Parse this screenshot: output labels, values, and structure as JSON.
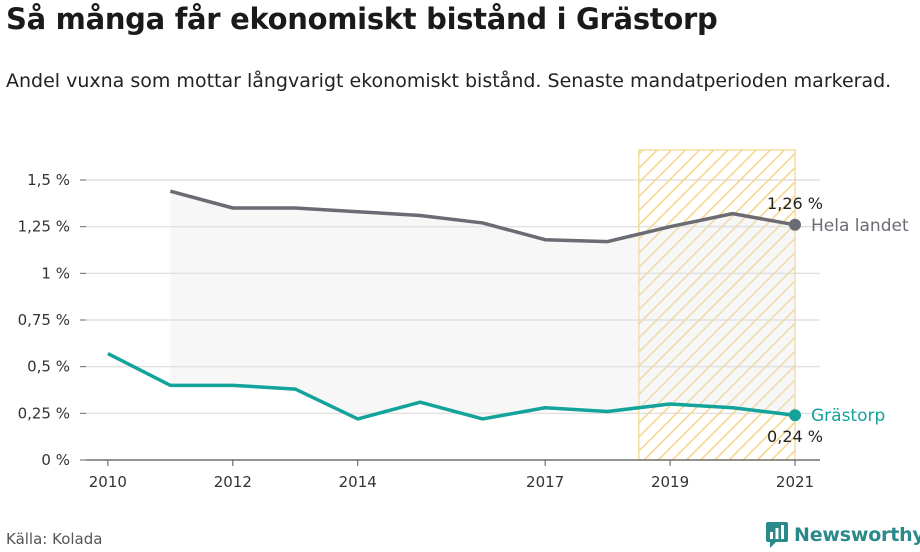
{
  "header": {
    "title": "Så många får ekonomiskt bistånd i Grästorp",
    "subtitle": "Andel vuxna som mottar långvarigt ekonomiskt bistånd. Senaste mandatperioden markerad."
  },
  "footer": {
    "source": "Källa: Kolada",
    "brand": "Newsworthy",
    "brand_icon": "newsworthy-logo-icon"
  },
  "chart_data": {
    "type": "line",
    "title": "Så många får ekonomiskt bistånd i Grästorp",
    "subtitle": "Andel vuxna som mottar långvarigt ekonomiskt bistånd. Senaste mandatperioden markerad.",
    "xlabel": "",
    "ylabel": "",
    "xlim": [
      2010,
      2021
    ],
    "ylim": [
      0,
      1.5
    ],
    "x_ticks": [
      2010,
      2012,
      2014,
      2017,
      2019,
      2021
    ],
    "y_ticks": [
      {
        "value": 0,
        "label": "0 %"
      },
      {
        "value": 0.25,
        "label": "0,25 %"
      },
      {
        "value": 0.5,
        "label": "0,5 %"
      },
      {
        "value": 0.75,
        "label": "0,75 %"
      },
      {
        "value": 1,
        "label": "1 %"
      },
      {
        "value": 1.25,
        "label": "1,25 %"
      },
      {
        "value": 1.5,
        "label": "1,5 %"
      }
    ],
    "grid": true,
    "highlight_period": {
      "from": 2018.5,
      "to": 2021,
      "color": "#f2c94c"
    },
    "series": [
      {
        "name": "Hela landet",
        "color": "#6b6b73",
        "x": [
          2011,
          2012,
          2013,
          2014,
          2015,
          2016,
          2017,
          2018,
          2019,
          2020,
          2021
        ],
        "values": [
          1.44,
          1.35,
          1.35,
          1.33,
          1.31,
          1.27,
          1.18,
          1.17,
          1.25,
          1.32,
          1.26
        ],
        "end_label": "1,26 %"
      },
      {
        "name": "Grästorp",
        "color": "#14a39a",
        "x": [
          2010,
          2011,
          2012,
          2013,
          2014,
          2015,
          2016,
          2017,
          2018,
          2019,
          2020,
          2021
        ],
        "values": [
          0.57,
          0.4,
          0.4,
          0.38,
          0.22,
          0.31,
          0.22,
          0.28,
          0.26,
          0.3,
          0.28,
          0.24
        ],
        "end_label": "0,24 %"
      }
    ]
  }
}
